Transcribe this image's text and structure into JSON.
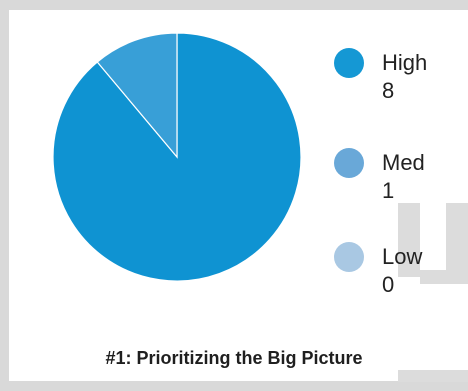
{
  "chart_data": {
    "type": "pie",
    "title": "#1: Prioritizing the Big Picture",
    "categories": [
      "High",
      "Med",
      "Low"
    ],
    "values": [
      8,
      1,
      0
    ],
    "colors": [
      "#0f93d2",
      "#389fd7",
      "#a9c8e3"
    ],
    "legend_colors": [
      "#1598d4",
      "#69a8d8",
      "#a9c8e3"
    ],
    "legend_placement": "right"
  },
  "legend": {
    "items": [
      {
        "label": "High",
        "value": "8"
      },
      {
        "label": "Med",
        "value": "1"
      },
      {
        "label": "Low",
        "value": "0"
      }
    ]
  }
}
